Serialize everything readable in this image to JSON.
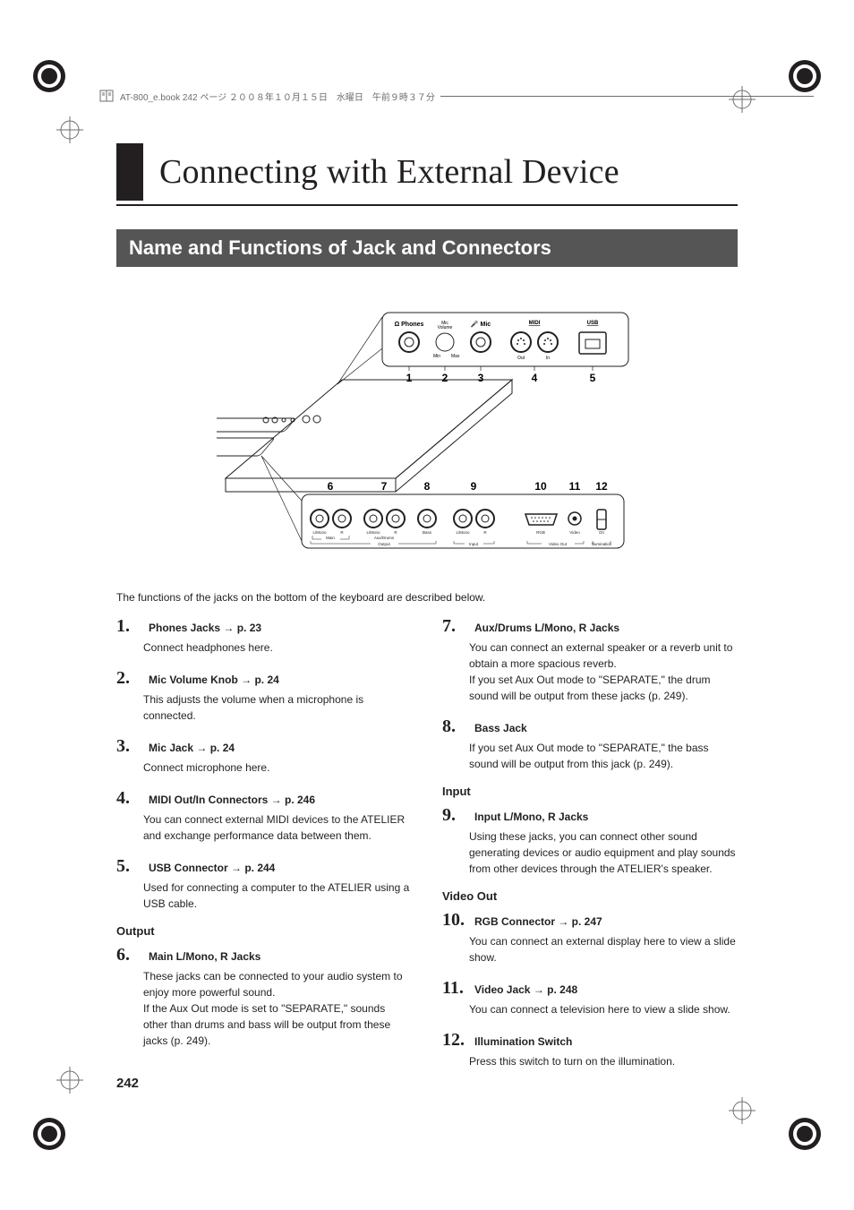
{
  "header": "AT-800_e.book  242 ページ  ２００８年１０月１５日　水曜日　午前９時３７分",
  "chapter_title": "Connecting with External Device",
  "section_title": "Name and Functions of Jack and Connectors",
  "intro": "The functions of the jacks on the bottom of the keyboard are described below.",
  "diagram": {
    "top_labels": [
      "Phones",
      "Mic Volume",
      "Mic",
      "MIDI",
      "USB"
    ],
    "midi_sub": [
      "Out",
      "In"
    ],
    "top_nums": [
      "1",
      "2",
      "3",
      "4",
      "5"
    ],
    "bottom_nums": [
      "6",
      "7",
      "8",
      "9",
      "10",
      "11",
      "12"
    ],
    "bottom_groups": [
      {
        "label": "Main",
        "sub": [
          "L/Mono",
          "R"
        ]
      },
      {
        "label": "Aux/Drums",
        "sub": [
          "L/Mono",
          "R"
        ]
      },
      {
        "label": "",
        "sub": [
          "Bass"
        ]
      },
      {
        "label": "",
        "sub": [
          "L/Mono",
          "R"
        ]
      }
    ],
    "bottom_section_output": "Output",
    "bottom_section_input": "Input",
    "video_out": "Video Out",
    "rgb": "RGB",
    "video": "Video",
    "illum": "Illumination",
    "illum_on": "On"
  },
  "left_items": [
    {
      "num": "1.",
      "title": "Phones Jacks → p. 23",
      "desc": "Connect headphones here."
    },
    {
      "num": "2.",
      "title": "Mic Volume Knob → p. 24",
      "desc": "This adjusts the volume when a microphone is connected."
    },
    {
      "num": "3.",
      "title": "Mic Jack → p. 24",
      "desc": "Connect microphone here."
    },
    {
      "num": "4.",
      "title": "MIDI Out/In Connectors → p. 246",
      "desc": "You can connect external MIDI devices to the ATELIER and exchange performance data between them."
    },
    {
      "num": "5.",
      "title": "USB Connector → p. 244",
      "desc": "Used for connecting a computer to the ATELIER using a USB cable."
    }
  ],
  "left_subhead": "Output",
  "left_items2": [
    {
      "num": "6.",
      "title": "Main L/Mono, R Jacks",
      "desc": "These jacks can be connected to your audio system to enjoy more powerful sound.\nIf the Aux Out mode is set to \"SEPARATE,\" sounds other than drums and bass will be output from these jacks (p. 249)."
    }
  ],
  "right_items": [
    {
      "num": "7.",
      "title": "Aux/Drums L/Mono, R Jacks",
      "desc": "You can connect an external speaker or a reverb unit to obtain a more spacious reverb.\nIf you set Aux Out mode to \"SEPARATE,\" the drum sound will be output from these jacks (p. 249)."
    },
    {
      "num": "8.",
      "title": "Bass Jack",
      "desc": "If you set Aux Out mode to \"SEPARATE,\" the bass sound will be output from this jack (p. 249)."
    }
  ],
  "right_subhead1": "Input",
  "right_items2": [
    {
      "num": "9.",
      "title": "Input L/Mono, R Jacks",
      "desc": "Using these jacks, you can connect other sound generating devices or audio equipment and play sounds from other devices through the ATELIER's speaker."
    }
  ],
  "right_subhead2": "Video Out",
  "right_items3": [
    {
      "num": "10.",
      "title": "RGB Connector → p. 247",
      "desc": "You can connect an external display here to view a slide show."
    },
    {
      "num": "11.",
      "title": "Video Jack → p. 248",
      "desc": "You can connect a television here to view a slide show."
    },
    {
      "num": "12.",
      "title": "Illumination Switch",
      "desc": "Press this switch to turn on the illumination."
    }
  ],
  "page_number": "242",
  "colors": {
    "black": "#231f20",
    "section_bg": "#555555",
    "white": "#ffffff",
    "gray_text": "#6d6e71"
  }
}
